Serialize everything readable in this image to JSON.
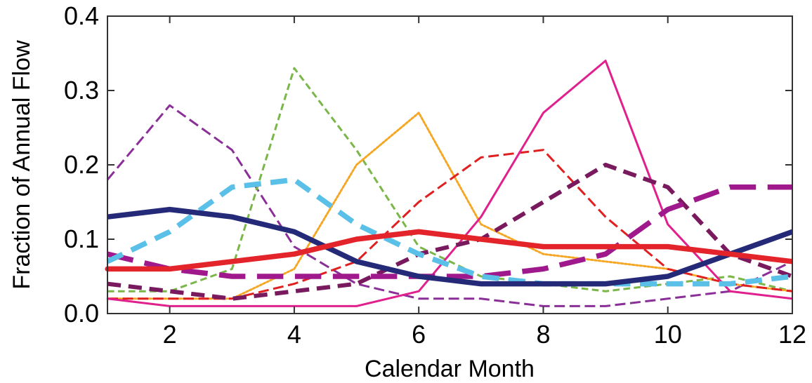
{
  "chart_data": {
    "type": "line",
    "xlabel": "Calendar Month",
    "ylabel": "Fraction of Annual Flow",
    "xlim": [
      1,
      12
    ],
    "ylim": [
      0.0,
      0.4
    ],
    "xticks": [
      2,
      4,
      6,
      8,
      10,
      12
    ],
    "xtick_labels": [
      "2",
      "4",
      "6",
      "8",
      "10",
      "12"
    ],
    "yticks": [
      0.0,
      0.1,
      0.2,
      0.3,
      0.4
    ],
    "ytick_labels": [
      "0.0",
      "0.1",
      "0.2",
      "0.3",
      "0.4"
    ],
    "grid": false,
    "legend": "none",
    "x": [
      1,
      2,
      3,
      4,
      5,
      6,
      7,
      8,
      9,
      10,
      11,
      12
    ],
    "series": [
      {
        "values": [
          0.18,
          0.28,
          0.22,
          0.09,
          0.04,
          0.02,
          0.02,
          0.01,
          0.01,
          0.02,
          0.03,
          0.07
        ],
        "color": "#8b2f98",
        "style": "long-dash",
        "weight": "thin"
      },
      {
        "values": [
          0.03,
          0.03,
          0.06,
          0.33,
          0.22,
          0.09,
          0.05,
          0.04,
          0.03,
          0.04,
          0.05,
          0.03
        ],
        "color": "#7ab648",
        "style": "dash",
        "weight": "thin"
      },
      {
        "values": [
          0.02,
          0.02,
          0.02,
          0.06,
          0.2,
          0.27,
          0.12,
          0.08,
          0.07,
          0.06,
          0.04,
          0.03
        ],
        "color": "#f5a623",
        "style": "dot",
        "weight": "thin"
      },
      {
        "values": [
          0.02,
          0.02,
          0.02,
          0.04,
          0.07,
          0.15,
          0.21,
          0.22,
          0.13,
          0.06,
          0.04,
          0.03
        ],
        "color": "#e02020",
        "style": "long-dash",
        "weight": "thin"
      },
      {
        "values": [
          0.02,
          0.01,
          0.01,
          0.01,
          0.01,
          0.03,
          0.13,
          0.27,
          0.34,
          0.12,
          0.03,
          0.02
        ],
        "color": "#e0208c",
        "style": "solid",
        "weight": "thin"
      },
      {
        "values": [
          0.04,
          0.03,
          0.02,
          0.03,
          0.04,
          0.08,
          0.1,
          0.15,
          0.2,
          0.17,
          0.08,
          0.05
        ],
        "color": "#7a1a5e",
        "style": "dash",
        "weight": "thick"
      },
      {
        "values": [
          0.08,
          0.06,
          0.05,
          0.05,
          0.05,
          0.05,
          0.05,
          0.06,
          0.08,
          0.14,
          0.17,
          0.17
        ],
        "color": "#a0198c",
        "style": "long-dash",
        "weight": "extra-thick"
      },
      {
        "values": [
          0.07,
          0.11,
          0.17,
          0.18,
          0.12,
          0.08,
          0.05,
          0.04,
          0.04,
          0.04,
          0.04,
          0.05
        ],
        "color": "#5bc0e8",
        "style": "dash",
        "weight": "extra-thick"
      },
      {
        "values": [
          0.13,
          0.14,
          0.13,
          0.11,
          0.07,
          0.05,
          0.04,
          0.04,
          0.04,
          0.05,
          0.08,
          0.11
        ],
        "color": "#252a78",
        "style": "solid",
        "weight": "extra-thick"
      },
      {
        "values": [
          0.06,
          0.06,
          0.07,
          0.08,
          0.1,
          0.11,
          0.1,
          0.09,
          0.09,
          0.09,
          0.08,
          0.07
        ],
        "color": "#e3242b",
        "style": "beaded",
        "weight": "extra-thick"
      }
    ]
  }
}
